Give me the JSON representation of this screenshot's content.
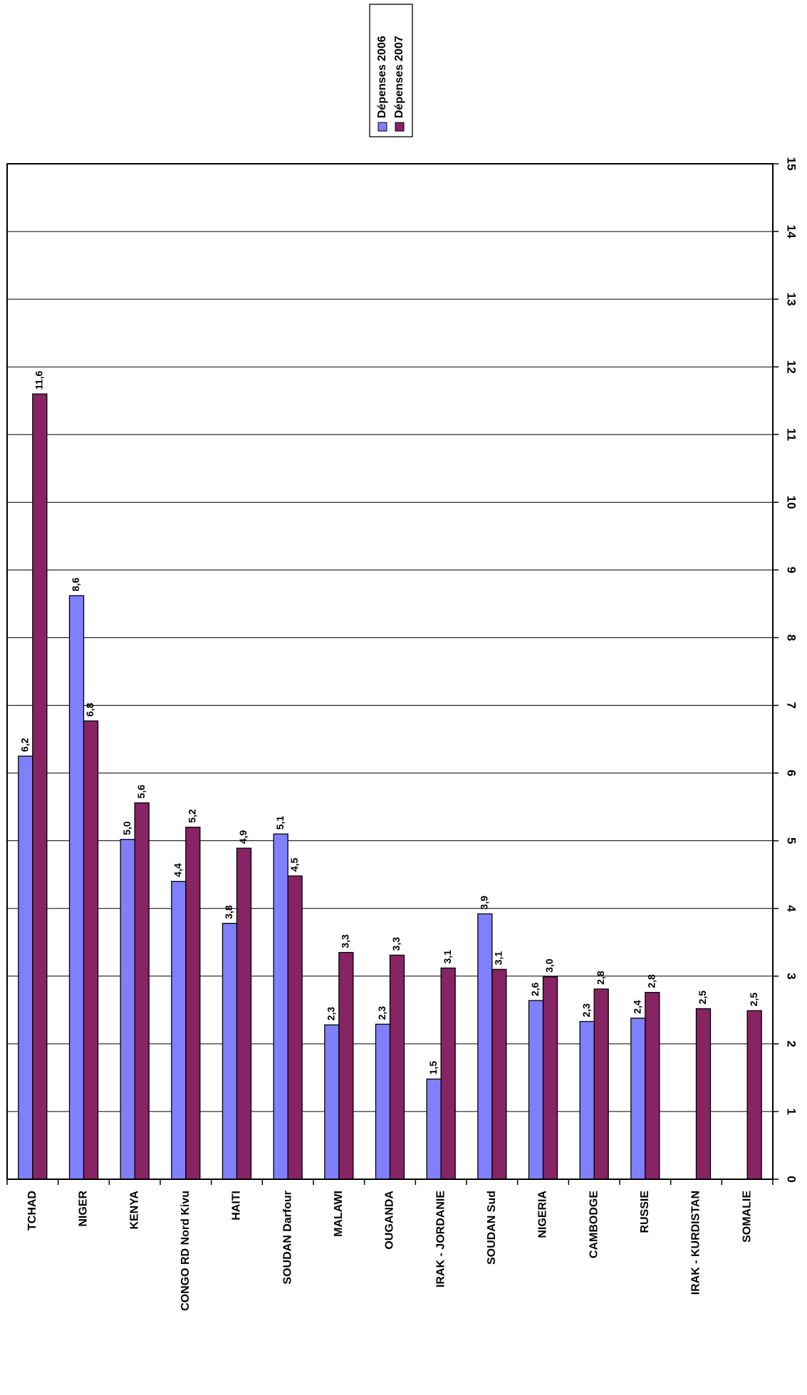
{
  "chart_data": {
    "type": "bar",
    "orientation": "vertical",
    "categories": [
      "TCHAD",
      "NIGER",
      "KENYA",
      "CONGO RD Nord Kivu",
      "HAITI",
      "SOUDAN Darfour",
      "MALAWI",
      "OUGANDA",
      "IRAK - JORDANIE",
      "SOUDAN Sud",
      "NIGERIA",
      "CAMBODGE",
      "RUSSIE",
      "IRAK - KURDISTAN",
      "SOMALIE"
    ],
    "series": [
      {
        "name": "Dépenses 2006",
        "color": "#8080ff",
        "values": [
          6.25,
          8.62,
          5.02,
          4.4,
          3.78,
          5.1,
          2.28,
          2.29,
          1.48,
          3.92,
          2.64,
          2.33,
          2.38,
          null,
          null
        ],
        "labels": [
          "6,2",
          "8,6",
          "5,0",
          "4,4",
          "3,8",
          "5,1",
          "2,3",
          "2,3",
          "1,5",
          "3,9",
          "2,6",
          "2,3",
          "2,4",
          "",
          ""
        ]
      },
      {
        "name": "Dépenses 2007",
        "color": "#862464",
        "values": [
          11.6,
          6.77,
          5.56,
          5.2,
          4.89,
          4.48,
          3.35,
          3.31,
          3.12,
          3.1,
          2.99,
          2.81,
          2.76,
          2.52,
          2.49
        ],
        "labels": [
          "11,6",
          "6,8",
          "5,6",
          "5,2",
          "4,9",
          "4,5",
          "3,3",
          "3,3",
          "3,1",
          "3,1",
          "3,0",
          "2,8",
          "2,8",
          "2,5",
          "2,5"
        ]
      }
    ],
    "yticks": [
      "0",
      "1",
      "2",
      "3",
      "4",
      "5",
      "6",
      "7",
      "8",
      "9",
      "10",
      "11",
      "12",
      "13",
      "14",
      "15"
    ],
    "ylim": [
      0,
      15
    ],
    "grid": true,
    "legend_position": "top-right",
    "title": "",
    "xlabel": "",
    "ylabel": ""
  }
}
